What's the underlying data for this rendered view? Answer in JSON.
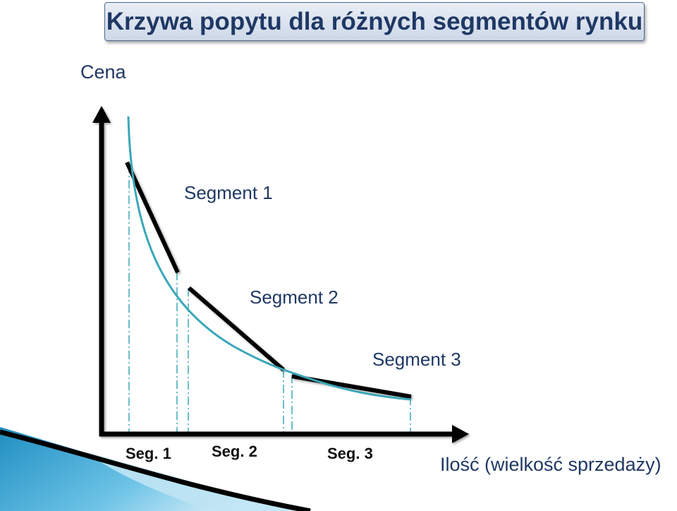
{
  "title": "Krzywa popytu dla różnych segmentów rynku",
  "y_axis_label": "Cena",
  "x_axis_label": "Ilość (wielkość sprzedaży)",
  "curve_labels": [
    "Segment 1",
    "Segment 2",
    "Segment 3"
  ],
  "segment_tick_labels": [
    "Seg. 1",
    "Seg. 2",
    "Seg. 3"
  ],
  "colors": {
    "title_text": "#1f3864",
    "curve": "#3aa7b8",
    "segment_line": "#000000",
    "axis": "#000000",
    "decor_blue": "#1f8ec1"
  }
}
